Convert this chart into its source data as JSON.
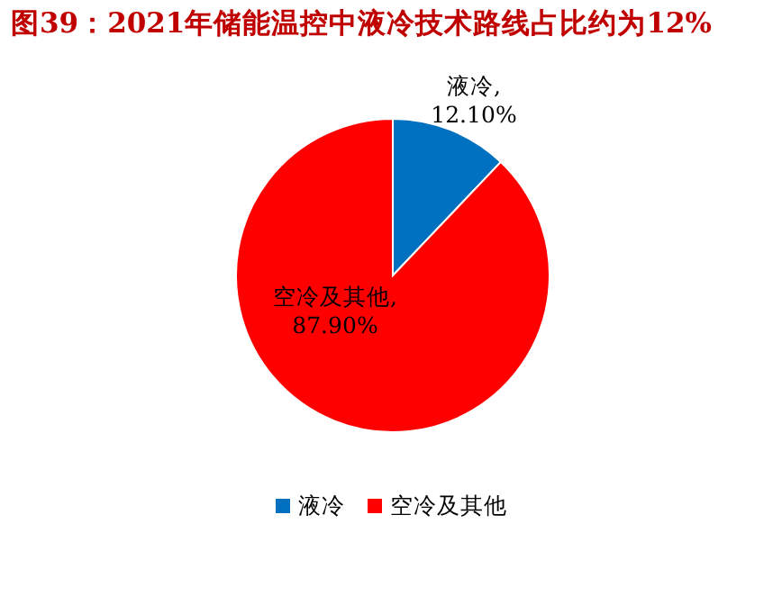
{
  "chart_data": {
    "type": "pie",
    "title": "图39：2021年储能温控中液冷技术路线占比约为12%",
    "categories": [
      "液冷",
      "空冷及其他"
    ],
    "values": [
      12.1,
      87.9
    ],
    "value_labels": [
      "液冷, 12.10%",
      "空冷及其他, 87.90%"
    ],
    "colors": [
      "#0070c0",
      "#ff0000"
    ],
    "legend": "bottom"
  }
}
